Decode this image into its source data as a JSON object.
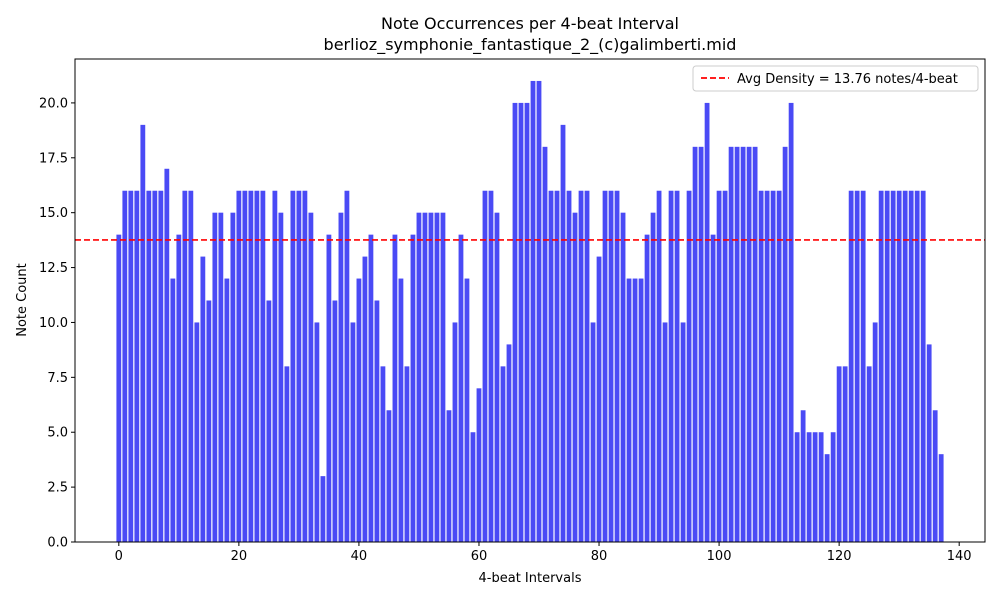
{
  "chart_data": {
    "type": "bar",
    "title": "Note Occurrences per 4-beat Interval",
    "subtitle": "berlioz_symphonie_fantastique_2_(c)galimberti.mid",
    "xlabel": "4-beat Intervals",
    "ylabel": "Note Count",
    "xlim": [
      -7.3,
      144.3
    ],
    "ylim": [
      0,
      22
    ],
    "xticks": [
      0,
      20,
      40,
      60,
      80,
      100,
      120,
      140
    ],
    "yticks": [
      0.0,
      2.5,
      5.0,
      7.5,
      10.0,
      12.5,
      15.0,
      17.5,
      20.0
    ],
    "ytick_labels": [
      "0.0",
      "2.5",
      "5.0",
      "7.5",
      "10.0",
      "12.5",
      "15.0",
      "17.5",
      "20.0"
    ],
    "bar_color": "#4a4af5",
    "x": [
      0,
      1,
      2,
      3,
      4,
      5,
      6,
      7,
      8,
      9,
      10,
      11,
      12,
      13,
      14,
      15,
      16,
      17,
      18,
      19,
      20,
      21,
      22,
      23,
      24,
      25,
      26,
      27,
      28,
      29,
      30,
      31,
      32,
      33,
      34,
      35,
      36,
      37,
      38,
      39,
      40,
      41,
      42,
      43,
      44,
      45,
      46,
      47,
      48,
      49,
      50,
      51,
      52,
      53,
      54,
      55,
      56,
      57,
      58,
      59,
      60,
      61,
      62,
      63,
      64,
      65,
      66,
      67,
      68,
      69,
      70,
      71,
      72,
      73,
      74,
      75,
      76,
      77,
      78,
      79,
      80,
      81,
      82,
      83,
      84,
      85,
      86,
      87,
      88,
      89,
      90,
      91,
      92,
      93,
      94,
      95,
      96,
      97,
      98,
      99,
      100,
      101,
      102,
      103,
      104,
      105,
      106,
      107,
      108,
      109,
      110,
      111,
      112,
      113,
      114,
      115,
      116,
      117,
      118,
      119,
      120,
      121,
      122,
      123,
      124,
      125,
      126,
      127,
      128,
      129,
      130,
      131,
      132,
      133,
      134,
      135,
      136,
      137
    ],
    "values": [
      14,
      16,
      16,
      16,
      19,
      16,
      16,
      16,
      17,
      12,
      14,
      16,
      16,
      10,
      13,
      11,
      15,
      15,
      12,
      15,
      16,
      16,
      16,
      16,
      16,
      11,
      16,
      15,
      8,
      16,
      16,
      16,
      15,
      10,
      3,
      14,
      11,
      15,
      16,
      10,
      12,
      13,
      14,
      11,
      8,
      6,
      14,
      12,
      8,
      14,
      15,
      15,
      15,
      15,
      15,
      6,
      10,
      14,
      12,
      5,
      7,
      16,
      16,
      15,
      8,
      9,
      20,
      20,
      20,
      21,
      21,
      18,
      16,
      16,
      19,
      16,
      15,
      16,
      16,
      10,
      13,
      16,
      16,
      16,
      15,
      12,
      12,
      12,
      14,
      15,
      16,
      10,
      16,
      16,
      10,
      16,
      18,
      18,
      20,
      14,
      16,
      16,
      18,
      18,
      18,
      18,
      18,
      16,
      16,
      16,
      16,
      18,
      20,
      5,
      6,
      5,
      5,
      5,
      4,
      5,
      8,
      8,
      16,
      16,
      16,
      8,
      10,
      16,
      16,
      16,
      16,
      16,
      16,
      16,
      16,
      9,
      6,
      4
    ],
    "average": {
      "value": 13.76,
      "label": "Avg Density = 13.76 notes/4-beat",
      "color": "#ff0000",
      "style": "dashed"
    },
    "legend_position": "top-right",
    "grid": false
  }
}
